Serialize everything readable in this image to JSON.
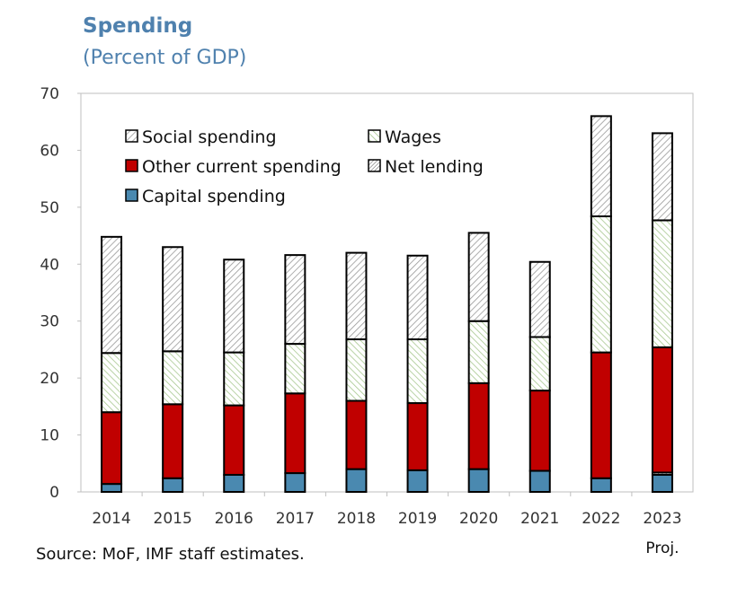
{
  "title": "Spending",
  "subtitle": "(Percent of GDP)",
  "source": "Source: MoF, IMF staff estimates.",
  "chart_data": {
    "type": "bar",
    "stacked": true,
    "categories": [
      "2014",
      "2015",
      "2016",
      "2017",
      "2018",
      "2019",
      "2020",
      "2021",
      "2022",
      "2023"
    ],
    "category_note": {
      "2023": "Proj."
    },
    "ylim": [
      0,
      70
    ],
    "yticks": [
      0,
      10,
      20,
      30,
      40,
      50,
      60,
      70
    ],
    "xlabel": "",
    "ylabel": "",
    "legend_position": "top-left",
    "series": [
      {
        "name": "Capital spending",
        "color": "#4a89b0",
        "pattern": "solid",
        "values": [
          1.4,
          2.4,
          3.0,
          3.3,
          4.0,
          3.8,
          4.0,
          3.7,
          2.4,
          3.0
        ]
      },
      {
        "name": "Net lending",
        "color": "#999999",
        "pattern": "hatch",
        "values": [
          0,
          0,
          0,
          0,
          0,
          0,
          0,
          0,
          0,
          0.4
        ]
      },
      {
        "name": "Other current spending",
        "color": "#c00000",
        "pattern": "solid",
        "values": [
          12.6,
          13.0,
          12.2,
          14.0,
          12.0,
          11.8,
          15.1,
          14.1,
          22.1,
          22.0
        ]
      },
      {
        "name": "Wages",
        "color": "#a8c890",
        "pattern": "hatch",
        "values": [
          10.4,
          9.3,
          9.3,
          8.7,
          10.8,
          11.2,
          10.9,
          9.4,
          23.9,
          22.3
        ]
      },
      {
        "name": "Social spending",
        "color": "#aaaaaa",
        "pattern": "hatch",
        "values": [
          20.4,
          18.3,
          16.3,
          15.6,
          15.2,
          14.7,
          15.5,
          13.2,
          17.6,
          15.3
        ]
      }
    ],
    "legend_order": [
      "Social spending",
      "Wages",
      "Other current spending",
      "Net lending",
      "Capital spending"
    ]
  }
}
